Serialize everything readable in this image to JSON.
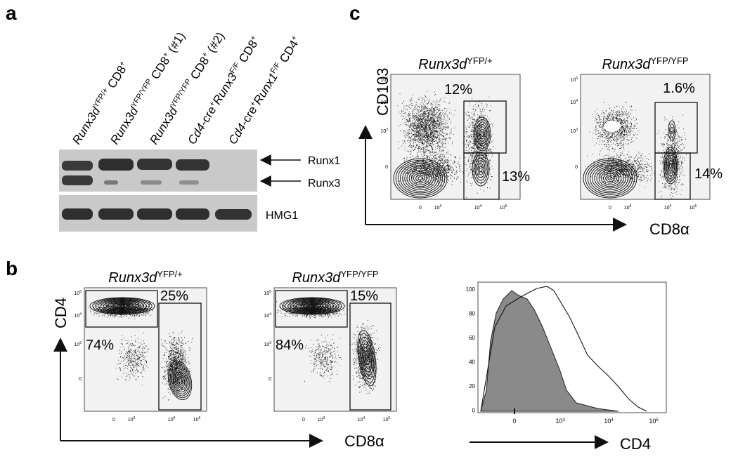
{
  "panels": {
    "a": {
      "label": "a",
      "lanes": [
        {
          "pre": "",
          "gene": "Runx3d",
          "sup1": "YFP/+",
          "mid": " CD8",
          "sup2": "+"
        },
        {
          "pre": "",
          "gene": "Runx3d",
          "sup1": "YFP/YFP",
          "mid": " CD8",
          "sup2": "+",
          "tail": " (#1)"
        },
        {
          "pre": "",
          "gene": "Runx3d",
          "sup1": "YFP/YFP",
          "mid": " CD8",
          "sup2": "+",
          "tail": " (#2)"
        },
        {
          "pre": "Cd4",
          "pre2": "-cre",
          "pre2sup": "+",
          "gene": "Runx3",
          "sup1": "F/F",
          "mid": " CD8",
          "sup2": "+"
        },
        {
          "pre": "Cd4",
          "pre2": "-cre",
          "pre2sup": "+",
          "gene": "Runx1",
          "sup1": "F/F",
          "mid": " CD4",
          "sup2": "+"
        }
      ],
      "bands": {
        "runx1": "Runx1",
        "runx3": "Runx3",
        "hmg1": "HMG1"
      }
    },
    "b": {
      "label": "b",
      "plot1": {
        "gene": "Runx3d",
        "genotype": "YFP/+",
        "top_left_pct": "74%",
        "right_pct": "25%"
      },
      "plot2": {
        "gene": "Runx3d",
        "genotype": "YFP/YFP",
        "top_left_pct": "84%",
        "right_pct": "15%"
      },
      "yaxis": "CD4",
      "xaxis": "CD8α",
      "hist_xaxis": "CD4",
      "hist_yticks": [
        "100",
        "80",
        "60",
        "40",
        "20",
        "0"
      ],
      "hist_xticks": [
        "0",
        "10",
        "10",
        "10"
      ],
      "hist_xticks_exp": [
        "",
        "3",
        "4",
        "5"
      ]
    },
    "c": {
      "label": "c",
      "plot1": {
        "gene": "Runx3d",
        "genotype": "YFP/+",
        "top_pct": "12%",
        "bottom_pct": "13%"
      },
      "plot2": {
        "gene": "Runx3d",
        "genotype": "YFP/YFP",
        "top_pct": "1.6%",
        "bottom_pct": "14%"
      },
      "yaxis": "CD103",
      "xaxis": "CD8α"
    },
    "flow_ticks": {
      "y": [
        "10",
        "10",
        "10",
        "0"
      ],
      "y_exp": [
        "5",
        "4",
        "3",
        ""
      ],
      "x": [
        "0",
        "10",
        "10",
        "10"
      ],
      "x_exp": [
        "",
        "3",
        "4",
        "5"
      ]
    }
  },
  "colors": {
    "ink": "#111111",
    "plotbg": "#f2f2f2",
    "gel": "#c9c9c9",
    "band": "#3a3a3a",
    "hist_fill": "#8a8a8a"
  }
}
